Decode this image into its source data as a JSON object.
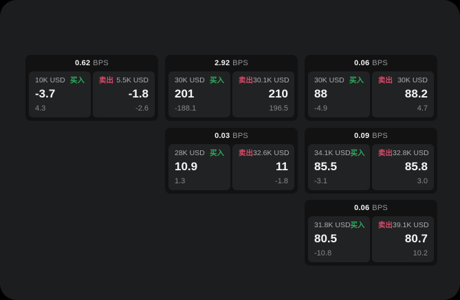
{
  "labels": {
    "bps_unit": "BPS",
    "buy": "买入",
    "sell": "卖出"
  },
  "colors": {
    "buy_green": "#2fa95e",
    "sell_red": "#d94a6a",
    "page_bg": "#1c1d1e",
    "card_bg": "#121213",
    "panel_bg": "#212223"
  },
  "cards": [
    {
      "bps": "0.62",
      "row": 0,
      "col": 0,
      "buy": {
        "size": "10K USD",
        "value": "-3.7",
        "sub": "4.3"
      },
      "sell": {
        "size": "5.5K USD",
        "value": "-1.8",
        "sub": "-2.6"
      }
    },
    {
      "bps": "2.92",
      "row": 0,
      "col": 1,
      "buy": {
        "size": "30K USD",
        "value": "201",
        "sub": "-188.1"
      },
      "sell": {
        "size": "30.1K USD",
        "value": "210",
        "sub": "196.5"
      }
    },
    {
      "bps": "0.06",
      "row": 0,
      "col": 2,
      "buy": {
        "size": "30K USD",
        "value": "88",
        "sub": "-4.9"
      },
      "sell": {
        "size": "30K USD",
        "value": "88.2",
        "sub": "4.7"
      }
    },
    {
      "bps": "0.03",
      "row": 1,
      "col": 1,
      "buy": {
        "size": "28K USD",
        "value": "10.9",
        "sub": "1.3"
      },
      "sell": {
        "size": "32.6K USD",
        "value": "11",
        "sub": "-1.8"
      }
    },
    {
      "bps": "0.09",
      "row": 1,
      "col": 2,
      "buy": {
        "size": "34.1K USD",
        "value": "85.5",
        "sub": "-3.1"
      },
      "sell": {
        "size": "32.8K USD",
        "value": "85.8",
        "sub": "3.0"
      }
    },
    {
      "bps": "0.06",
      "row": 2,
      "col": 2,
      "buy": {
        "size": "31.8K USD",
        "value": "80.5",
        "sub": "-10.8"
      },
      "sell": {
        "size": "39.1K USD",
        "value": "80.7",
        "sub": "10.2"
      }
    }
  ]
}
